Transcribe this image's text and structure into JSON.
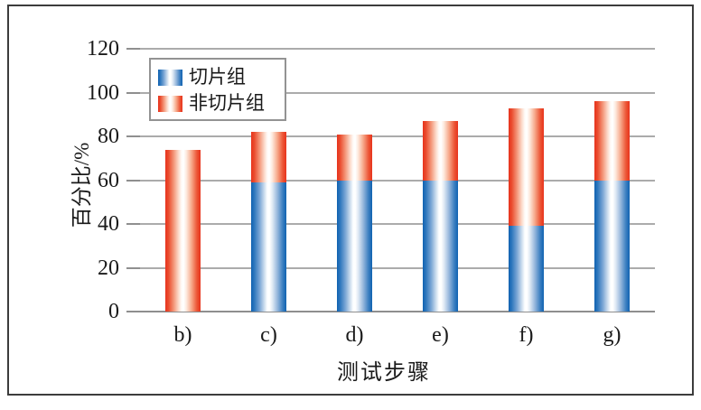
{
  "figure": {
    "kind": "stacked bar chart figure from a Chinese document",
    "border_color": "#3c3c3c",
    "background": "#ffffff"
  },
  "chart_data": {
    "type": "bar",
    "subtype": "stacked",
    "title": "",
    "xlabel": "测试步骤",
    "ylabel": "百分比/%",
    "categories": [
      "b)",
      "c)",
      "d)",
      "e)",
      "f)",
      "g)"
    ],
    "series": [
      {
        "name": "切片组",
        "color": "#1062b1",
        "values": [
          0,
          59,
          60,
          60,
          39,
          60
        ]
      },
      {
        "name": "非切片组",
        "color": "#e7331d",
        "values": [
          74,
          23,
          21,
          27,
          54,
          36
        ]
      }
    ],
    "stack_totals": [
      74,
      82,
      81,
      87,
      93,
      96
    ],
    "yticks": [
      0,
      20,
      40,
      60,
      80,
      100,
      120
    ],
    "ylim": [
      0,
      120
    ],
    "grid": true,
    "gridline_color": "#ababab",
    "legend_position": "upper-left-inside",
    "bar_style": "cylinder-gradient"
  }
}
